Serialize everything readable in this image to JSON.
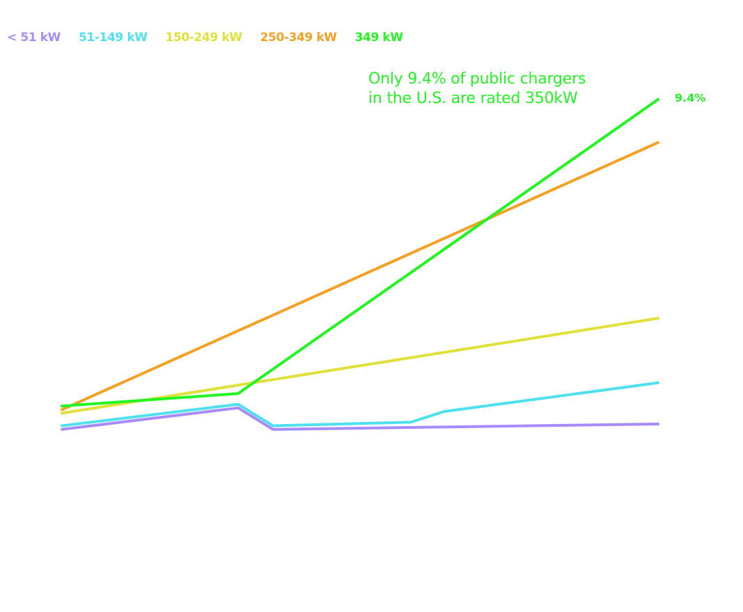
{
  "chart_data": {
    "type": "line",
    "title": "",
    "xlabel": "",
    "ylabel": "",
    "grid": false,
    "legend_position": "top-left",
    "x": [
      0,
      1,
      2,
      3,
      4,
      5,
      6,
      7
    ],
    "series": [
      {
        "name": "< 51 kW",
        "color": "#a78bfa",
        "values": [
          0.2,
          null,
          0.8,
          0.2,
          null,
          null,
          null,
          0.35
        ]
      },
      {
        "name": "51-149 kW",
        "color": "#4fe0f0",
        "values": [
          0.3,
          null,
          0.9,
          0.3,
          0.4,
          0.7,
          null,
          1.5
        ]
      },
      {
        "name": "150-249 kW",
        "color": "#e0e03a",
        "values": [
          0.65,
          null,
          null,
          null,
          null,
          null,
          null,
          3.3
        ]
      },
      {
        "name": "250-349 kW",
        "color": "#f5a024",
        "values": [
          0.75,
          null,
          null,
          null,
          null,
          null,
          null,
          8.2
        ]
      },
      {
        "name": "349 kW",
        "color": "#22f522",
        "values": [
          0.85,
          null,
          1.2,
          null,
          null,
          null,
          null,
          9.4
        ]
      }
    ],
    "annotation": "Only 9.4% of public chargers in the U.S. are rated 350kW",
    "end_label": "9.4%"
  },
  "annotation_lines": [
    "Only 9.4% of public chargers",
    "in the U.S. are rated 350kW"
  ],
  "colors": {
    "annotation": "#22f522"
  }
}
